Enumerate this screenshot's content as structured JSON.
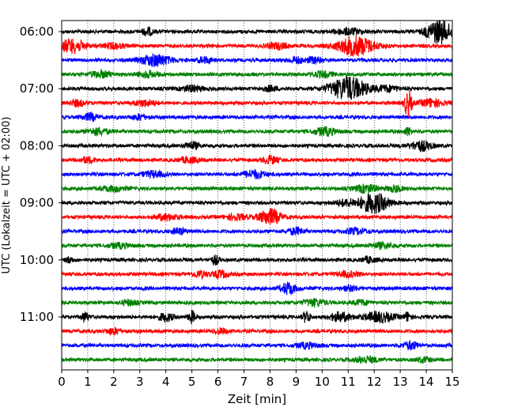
{
  "chart_data": {
    "type": "line",
    "title": "",
    "xlabel": "Zeit  [min]",
    "ylabel": "UTC (Lokalzeit = UTC + 02:00)",
    "xlim": [
      0,
      15
    ],
    "x_ticks": [
      "0",
      "1",
      "2",
      "3",
      "4",
      "5",
      "6",
      "7",
      "8",
      "9",
      "10",
      "11",
      "12",
      "13",
      "14",
      "15"
    ],
    "y_ticks": [
      "06:00",
      "07:00",
      "08:00",
      "09:00",
      "10:00",
      "11:00"
    ],
    "grid": "vertical dotted",
    "trace_interval_min": 15,
    "first_trace": "06:00",
    "trace_colors": [
      "#000000",
      "#ff0000",
      "#0000ff",
      "#008000"
    ],
    "traces": [
      {
        "start": "06:00",
        "bursts": [
          [
            3.3,
            0.15,
            2
          ],
          [
            11,
            0.4,
            1.5
          ],
          [
            14.5,
            0.35,
            6
          ]
        ]
      },
      {
        "start": "06:15",
        "bursts": [
          [
            0.4,
            0.35,
            3.5
          ],
          [
            2,
            0.3,
            1.3
          ],
          [
            8.3,
            0.3,
            1.5
          ],
          [
            11.3,
            0.5,
            5
          ]
        ]
      },
      {
        "start": "06:30",
        "bursts": [
          [
            3.6,
            0.4,
            3
          ],
          [
            5.5,
            0.2,
            1.5
          ],
          [
            9,
            0.2,
            1.5
          ],
          [
            9.7,
            0.2,
            1.5
          ]
        ]
      },
      {
        "start": "06:45",
        "bursts": [
          [
            1.5,
            0.3,
            1.6
          ],
          [
            3.3,
            0.3,
            1.4
          ],
          [
            10,
            0.3,
            1.4
          ]
        ]
      },
      {
        "start": "07:00",
        "bursts": [
          [
            5,
            0.3,
            1.5
          ],
          [
            8,
            0.2,
            1.3
          ],
          [
            11,
            0.5,
            6
          ],
          [
            12.5,
            0.3,
            1.5
          ]
        ]
      },
      {
        "start": "07:15",
        "bursts": [
          [
            0.6,
            0.2,
            1.5
          ],
          [
            3.2,
            0.3,
            1.5
          ],
          [
            13.3,
            0.1,
            7
          ],
          [
            14.2,
            0.3,
            2
          ]
        ]
      },
      {
        "start": "07:30",
        "bursts": [
          [
            1.1,
            0.2,
            1.8
          ],
          [
            3,
            0.2,
            1.3
          ]
        ]
      },
      {
        "start": "07:45",
        "bursts": [
          [
            1.4,
            0.3,
            1.7
          ],
          [
            10.1,
            0.3,
            2
          ],
          [
            13.3,
            0.1,
            2
          ]
        ]
      },
      {
        "start": "08:00",
        "bursts": [
          [
            5,
            0.2,
            1.8
          ],
          [
            13.8,
            0.3,
            2.5
          ]
        ]
      },
      {
        "start": "08:15",
        "bursts": [
          [
            1,
            0.2,
            1.5
          ],
          [
            4.9,
            0.3,
            1.3
          ],
          [
            8,
            0.2,
            2
          ]
        ]
      },
      {
        "start": "08:30",
        "bursts": [
          [
            3.5,
            0.3,
            1.5
          ],
          [
            7.4,
            0.3,
            2
          ]
        ]
      },
      {
        "start": "08:45",
        "bursts": [
          [
            2,
            0.3,
            1.3
          ],
          [
            11.7,
            0.3,
            2
          ],
          [
            12.8,
            0.2,
            1.5
          ]
        ]
      },
      {
        "start": "09:00",
        "bursts": [
          [
            12,
            0.4,
            5
          ],
          [
            10.9,
            0.3,
            1.5
          ]
        ]
      },
      {
        "start": "09:15",
        "bursts": [
          [
            4,
            0.3,
            1.5
          ],
          [
            6.7,
            0.3,
            1.4
          ],
          [
            8,
            0.3,
            4
          ]
        ]
      },
      {
        "start": "09:30",
        "bursts": [
          [
            4.5,
            0.2,
            1.5
          ],
          [
            9,
            0.2,
            1.8
          ],
          [
            11.3,
            0.3,
            1.4
          ]
        ]
      },
      {
        "start": "09:45",
        "bursts": [
          [
            2.2,
            0.3,
            1.2
          ],
          [
            12.3,
            0.3,
            1.3
          ]
        ]
      },
      {
        "start": "10:00",
        "bursts": [
          [
            0.3,
            0.1,
            1.5
          ],
          [
            5.9,
            0.1,
            2.2
          ],
          [
            11.8,
            0.2,
            1.4
          ]
        ]
      },
      {
        "start": "10:15",
        "bursts": [
          [
            5.3,
            0.2,
            1.6
          ],
          [
            6.1,
            0.2,
            1.8
          ],
          [
            11,
            0.3,
            1.3
          ]
        ]
      },
      {
        "start": "10:30",
        "bursts": [
          [
            8.7,
            0.2,
            3
          ],
          [
            11.1,
            0.2,
            1.3
          ]
        ]
      },
      {
        "start": "10:45",
        "bursts": [
          [
            2.6,
            0.2,
            1.3
          ],
          [
            9.7,
            0.3,
            1.8
          ],
          [
            11.5,
            0.2,
            1.3
          ]
        ]
      },
      {
        "start": "11:00",
        "bursts": [
          [
            0.9,
            0.1,
            2.5
          ],
          [
            4,
            0.2,
            2
          ],
          [
            5,
            0.1,
            3
          ],
          [
            9.4,
            0.1,
            3
          ],
          [
            10.7,
            0.3,
            2.2
          ],
          [
            12.2,
            0.4,
            2.5
          ],
          [
            13.3,
            0.1,
            2.2
          ]
        ]
      },
      {
        "start": "11:15",
        "bursts": [
          [
            2,
            0.2,
            1.5
          ],
          [
            6.1,
            0.2,
            1.3
          ]
        ]
      },
      {
        "start": "11:30",
        "bursts": [
          [
            9.4,
            0.3,
            1.3
          ],
          [
            13.4,
            0.2,
            2
          ]
        ]
      },
      {
        "start": "11:45",
        "bursts": [
          [
            11.7,
            0.3,
            1.6
          ],
          [
            13.9,
            0.2,
            1.2
          ]
        ]
      }
    ]
  }
}
